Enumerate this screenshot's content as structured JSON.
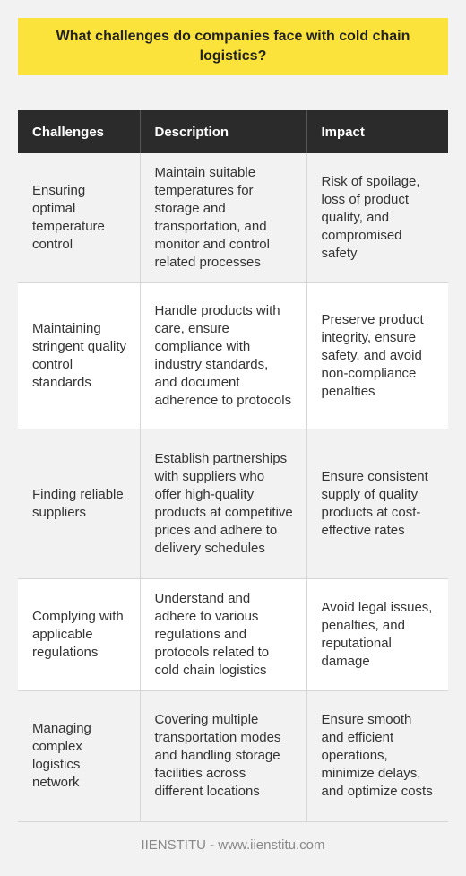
{
  "title": "What challenges do companies face with cold chain logistics?",
  "table": {
    "headers": [
      "Challenges",
      "Description",
      "Impact"
    ],
    "rows": [
      {
        "challenge": "Ensuring optimal temperature control",
        "description": "Maintain suitable temperatures for storage and transportation, and monitor and control related processes",
        "impact": "Risk of spoilage, loss of product quality, and compromised safety"
      },
      {
        "challenge": "Maintaining stringent quality control standards",
        "description": "Handle products with care, ensure compliance with industry standards, and document adherence to protocols",
        "impact": "Preserve product integrity, ensure safety, and avoid non-compliance penalties"
      },
      {
        "challenge": "Finding reliable suppliers",
        "description": "Establish partnerships with suppliers who offer high-quality products at competitive prices and adhere to delivery schedules",
        "impact": "Ensure consistent supply of quality products at cost-effective rates"
      },
      {
        "challenge": "Complying with applicable regulations",
        "description": "Understand and adhere to various regulations and protocols related to cold chain logistics",
        "impact": "Avoid legal issues, penalties, and reputational damage"
      },
      {
        "challenge": "Managing complex logistics network",
        "description": "Covering multiple transportation modes and handling storage facilities across different locations",
        "impact": "Ensure smooth and efficient operations, minimize delays, and optimize costs"
      }
    ]
  },
  "footer": "IIENSTITU - www.iienstitu.com",
  "colors": {
    "title_background": "#fbe33b",
    "header_background": "#2b2b2b",
    "page_background": "#f2f2f2"
  }
}
